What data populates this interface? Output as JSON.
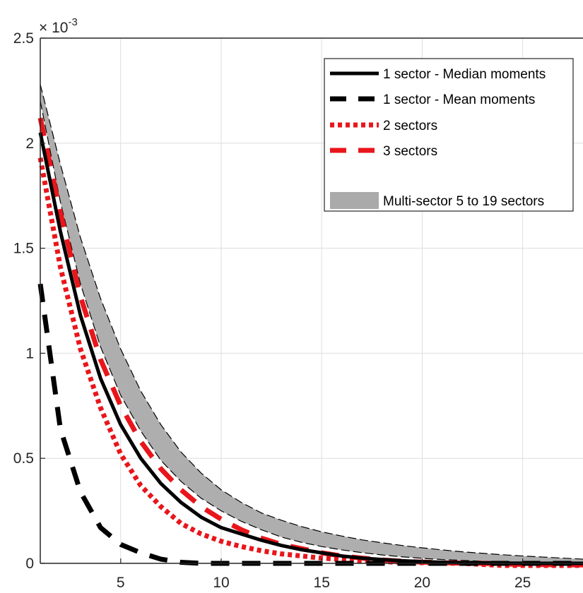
{
  "chart_data": {
    "type": "line",
    "title": "",
    "xlabel": "",
    "ylabel": "",
    "xlim": [
      1,
      28
    ],
    "ylim": [
      0,
      0.0025
    ],
    "grid": true,
    "y_exponent_label": "× 10^-3",
    "x_ticks": [
      5,
      10,
      15,
      20,
      25
    ],
    "x_tick_labels": [
      "5",
      "10",
      "15",
      "20",
      "25"
    ],
    "y_ticks": [
      0,
      0.0005,
      0.001,
      0.0015,
      0.002,
      0.0025
    ],
    "y_tick_labels": [
      "0",
      "0.5",
      "1",
      "1.5",
      "2",
      "2.5"
    ],
    "legend_placement": "top-right",
    "series": [
      {
        "name": "1 sector - Median moments",
        "style": "solid",
        "color": "#000000",
        "x": [
          1,
          2,
          3,
          4,
          5,
          6,
          7,
          8,
          9,
          10,
          11,
          12,
          13,
          14,
          15,
          16,
          17,
          18,
          19,
          20,
          21,
          22,
          23,
          24,
          25,
          26,
          27,
          28
        ],
        "values": [
          0.00205,
          0.00158,
          0.00118,
          0.00088,
          0.00066,
          0.0005,
          0.00038,
          0.00029,
          0.00022,
          0.00017,
          0.00014,
          0.00011,
          8.5e-05,
          6.5e-05,
          5e-05,
          3.5e-05,
          2.5e-05,
          1.8e-05,
          1.2e-05,
          8e-06,
          5e-06,
          3e-06,
          2e-06,
          1e-06,
          5e-07,
          0,
          0,
          0
        ]
      },
      {
        "name": "1 sector - Mean moments",
        "style": "dashed",
        "color": "#000000",
        "x": [
          1,
          2,
          3,
          4,
          5,
          6,
          7,
          8,
          9,
          10,
          11,
          12,
          13,
          14,
          15,
          16,
          17,
          18,
          19,
          20,
          21,
          22,
          23,
          24,
          25,
          26,
          27,
          28
        ],
        "values": [
          0.00133,
          0.00064,
          0.00034,
          0.00017,
          9e-05,
          5e-05,
          2e-05,
          5e-06,
          0,
          0,
          0,
          0,
          0,
          0,
          0,
          0,
          0,
          0,
          0,
          0,
          0,
          0,
          0,
          0,
          0,
          0,
          0,
          0
        ]
      },
      {
        "name": "2 sectors",
        "style": "dotted",
        "color": "#e8161b",
        "x": [
          1,
          2,
          3,
          4,
          5,
          6,
          7,
          8,
          9,
          10,
          11,
          12,
          13,
          14,
          15,
          16,
          17,
          18,
          19,
          20,
          21,
          22,
          23,
          24,
          25,
          26,
          27,
          28
        ],
        "values": [
          0.00193,
          0.00141,
          0.00102,
          0.00074,
          0.00052,
          0.00037,
          0.00027,
          0.00019,
          0.00014,
          0.000105,
          8e-05,
          6e-05,
          4.5e-05,
          3.5e-05,
          2.5e-05,
          1.8e-05,
          1.2e-05,
          8e-06,
          5e-06,
          3e-06,
          1e-06,
          0,
          -5e-06,
          -1e-05,
          -1e-05,
          -1e-05,
          -1e-05,
          -1e-05
        ]
      },
      {
        "name": "3 sectors",
        "style": "dashed",
        "color": "#e8161b",
        "x": [
          1,
          2,
          3,
          4,
          5,
          6,
          7,
          8,
          9,
          10,
          11,
          12,
          13,
          14,
          15,
          16,
          17,
          18,
          19,
          20,
          21,
          22,
          23,
          24,
          25,
          26,
          27,
          28
        ],
        "values": [
          0.00212,
          0.00167,
          0.00127,
          0.00097,
          0.00075,
          0.00058,
          0.00045,
          0.00035,
          0.00027,
          0.00021,
          0.00016,
          0.00012,
          9e-05,
          7e-05,
          5e-05,
          3.5e-05,
          2.5e-05,
          1.6e-05,
          1e-05,
          6e-06,
          3e-06,
          1e-06,
          0,
          -3e-06,
          -5e-06,
          -6e-06,
          -7e-06,
          -7e-06
        ]
      },
      {
        "name": "Multi-sector 5 to 19 sectors",
        "style": "band",
        "color": "#aaaaaa",
        "x": [
          1,
          2,
          3,
          4,
          5,
          6,
          7,
          8,
          9,
          10,
          11,
          12,
          13,
          14,
          15,
          16,
          17,
          18,
          19,
          20,
          21,
          22,
          23,
          24,
          25,
          26,
          27,
          28
        ],
        "upper": [
          0.00228,
          0.0019,
          0.00155,
          0.00126,
          0.00102,
          0.00082,
          0.00066,
          0.00053,
          0.00043,
          0.00035,
          0.00029,
          0.00024,
          0.000205,
          0.000175,
          0.00015,
          0.00013,
          0.000112,
          9.8e-05,
          8.5e-05,
          7.4e-05,
          6.4e-05,
          5.5e-05,
          4.8e-05,
          4.1e-05,
          3.5e-05,
          3e-05,
          2.5e-05,
          2e-05
        ],
        "lower": [
          0.0022,
          0.00172,
          0.00133,
          0.00103,
          0.0008,
          0.00063,
          0.00049,
          0.00039,
          0.00031,
          0.00025,
          0.0002,
          0.00016,
          0.000125,
          0.0001,
          8e-05,
          6.4e-05,
          5.1e-05,
          4e-05,
          3.1e-05,
          2.4e-05,
          1.8e-05,
          1.4e-05,
          1e-05,
          7e-06,
          5e-06,
          3e-06,
          2e-06,
          1e-06
        ]
      }
    ]
  }
}
